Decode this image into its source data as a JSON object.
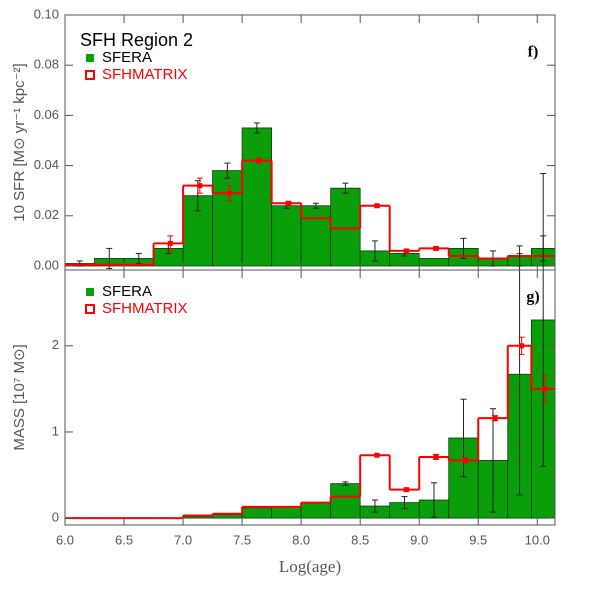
{
  "chart_data": [
    {
      "type": "histogram",
      "title": "SFH Region 2",
      "panel_label": "f)",
      "ylabel": "10 SFR [M⊙ yr⁻¹ kpc⁻²]",
      "bins": [
        6.0,
        6.25,
        6.5,
        6.75,
        7.0,
        7.25,
        7.5,
        7.75,
        8.0,
        8.25,
        8.5,
        8.75,
        9.0,
        9.25,
        9.5,
        9.75,
        9.95,
        10.15
      ],
      "xlim": [
        6.0,
        10.15
      ],
      "ylim": [
        -0.0016,
        0.1
      ],
      "yticks": [
        {
          "value": 0,
          "label": "0.00"
        },
        {
          "value": 0.02,
          "label": "0.02"
        },
        {
          "value": 0.04,
          "label": "0.04"
        },
        {
          "value": 0.06,
          "label": "0.06"
        },
        {
          "value": 0.08,
          "label": "0.08"
        },
        {
          "value": 0.1,
          "label": "0.10"
        }
      ],
      "series": [
        {
          "name": "SFERA",
          "color": "#0a9e0a",
          "style": "filled",
          "values": [
            0.001,
            0.003,
            0.003,
            0.007,
            0.028,
            0.038,
            0.055,
            0.024,
            0.024,
            0.031,
            0.006,
            0.005,
            0.003,
            0.007,
            0.003,
            0.004,
            0.007
          ],
          "errors": [
            0.001,
            0.004,
            0.002,
            0.002,
            0.006,
            0.003,
            0.002,
            0.001,
            0.001,
            0.002,
            0.004,
            0.001,
            null,
            0.004,
            0.003,
            0.004,
            0.005
          ]
        },
        {
          "name": "SFHMATRIX",
          "color": "#ff0000",
          "style": "step",
          "values": [
            0.0005,
            0.0005,
            0.0005,
            0.009,
            0.032,
            0.029,
            0.042,
            0.025,
            0.019,
            0.015,
            0.024,
            0.006,
            0.007,
            0.004,
            0.003,
            0.004,
            0.004
          ],
          "errors": [
            null,
            null,
            null,
            0.003,
            0.003,
            0.003,
            0.001,
            0.0005,
            null,
            null,
            0.0005,
            0.0005,
            0.0005,
            null,
            null,
            null,
            null
          ]
        }
      ]
    },
    {
      "type": "histogram",
      "panel_label": "g)",
      "ylabel": "MASS [10⁷ M⊙]",
      "xlabel": "Log(age)",
      "bins": [
        6.0,
        6.25,
        6.5,
        6.75,
        7.0,
        7.25,
        7.5,
        7.75,
        8.0,
        8.25,
        8.5,
        8.75,
        9.0,
        9.25,
        9.5,
        9.75,
        9.95,
        10.15
      ],
      "xlim": [
        6.0,
        10.15
      ],
      "ylim": [
        -0.08,
        2.88
      ],
      "xticks": [
        {
          "value": 6,
          "label": "6.0"
        },
        6.5,
        {
          "value": 7,
          "label": "7.0"
        },
        7.5,
        {
          "value": 8,
          "label": "8.0"
        },
        8.5,
        {
          "value": 9,
          "label": "9.0"
        },
        9.5,
        {
          "value": 10,
          "label": "10.0"
        }
      ],
      "yticks": [
        0,
        1,
        2
      ],
      "series": [
        {
          "name": "SFERA",
          "color": "#0a9e0a",
          "style": "filled",
          "values": [
            0,
            0,
            0,
            0,
            0.02,
            0.04,
            0.12,
            0.13,
            0.18,
            0.4,
            0.14,
            0.18,
            0.21,
            0.93,
            0.67,
            1.67,
            2.3
          ],
          "errors": [
            null,
            null,
            null,
            null,
            null,
            null,
            null,
            null,
            null,
            0.02,
            0.07,
            0.07,
            0.2,
            0.45,
            0.6,
            1.4,
            1.7
          ]
        },
        {
          "name": "SFHMATRIX",
          "color": "#ff0000",
          "style": "step",
          "values": [
            0,
            0,
            0,
            0,
            0.03,
            0.05,
            0.13,
            0.13,
            0.18,
            0.25,
            0.73,
            0.33,
            0.71,
            0.67,
            1.16,
            2.0,
            1.5
          ],
          "errors": [
            null,
            null,
            null,
            null,
            null,
            null,
            null,
            null,
            null,
            null,
            0.01,
            0.02,
            0.03,
            0.03,
            0.03,
            0.1,
            0.15
          ]
        }
      ]
    }
  ]
}
